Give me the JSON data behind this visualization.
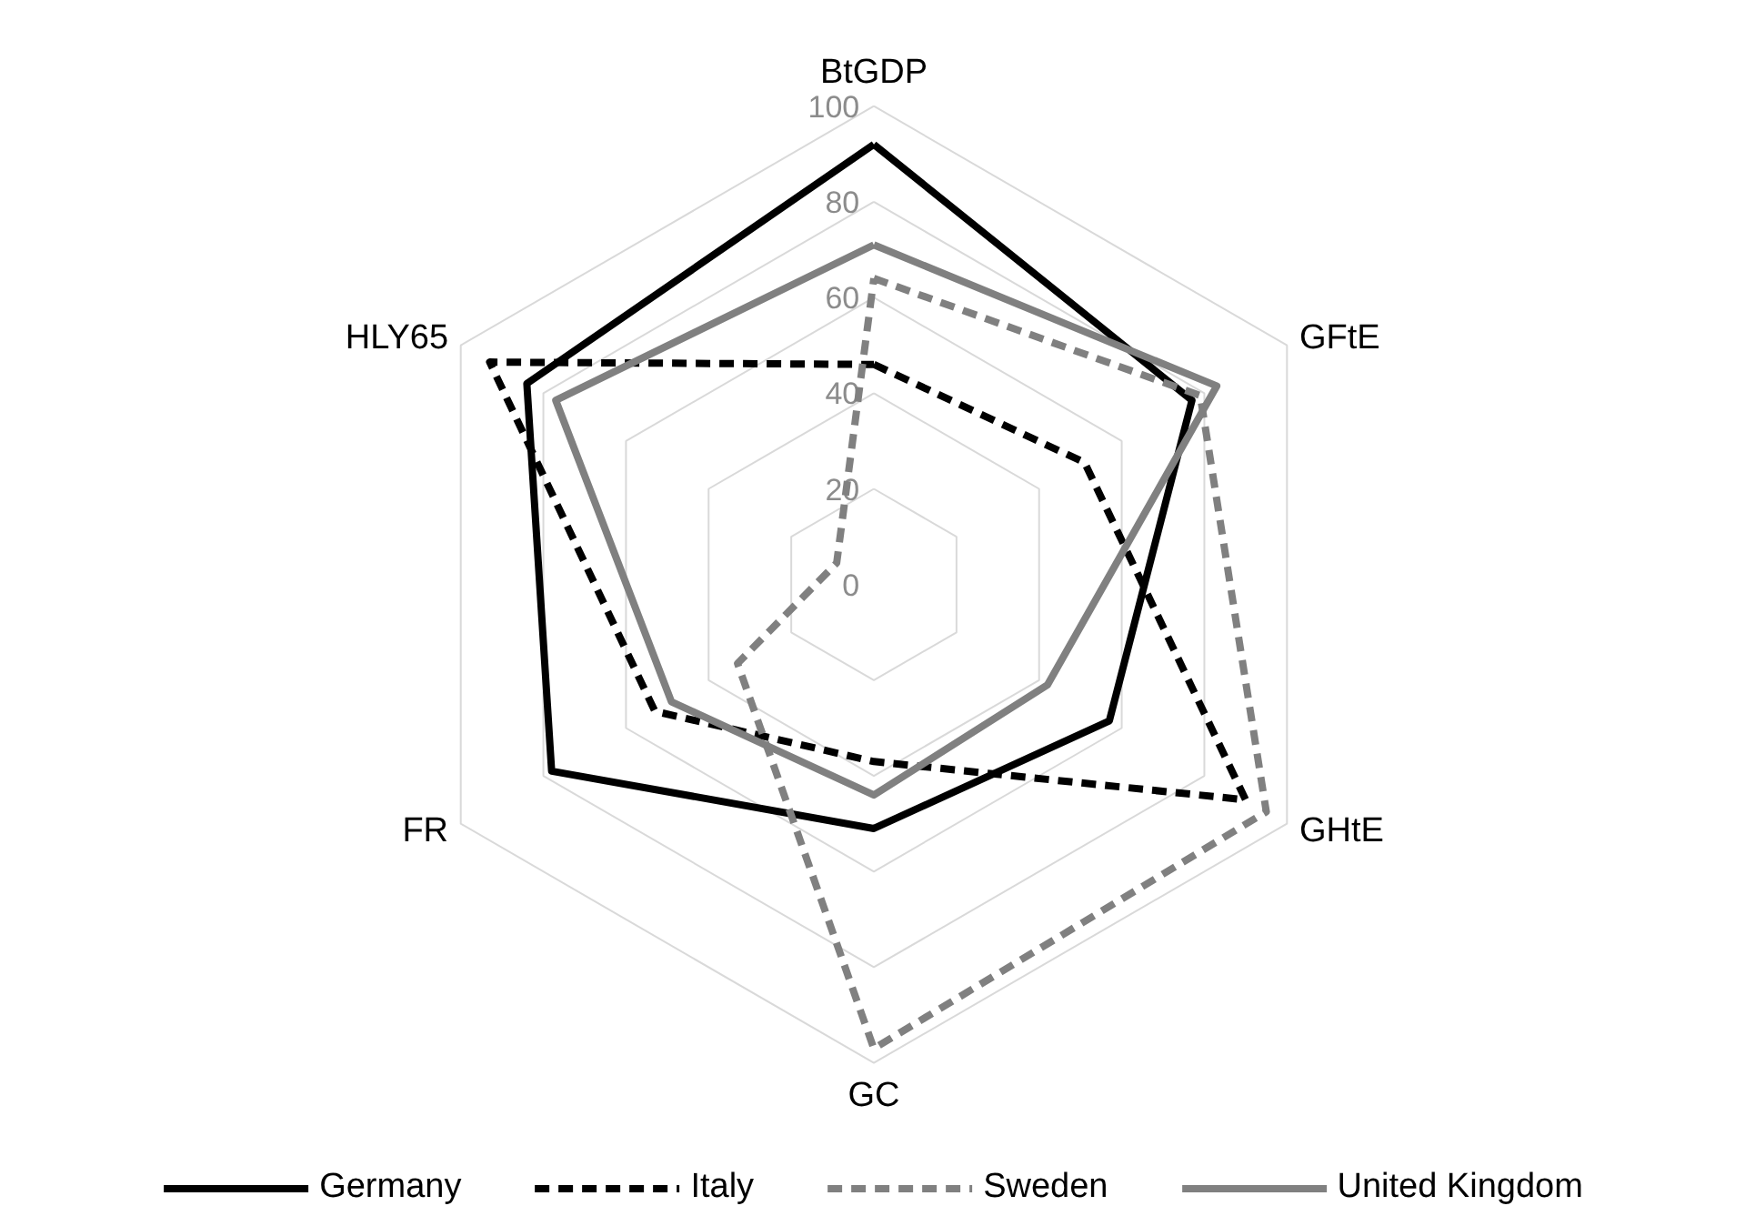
{
  "chart_data": {
    "type": "radar",
    "categories": [
      "BtGDP",
      "GFtE",
      "GHtE",
      "GC",
      "FR",
      "HLY65"
    ],
    "ylim": [
      0,
      100
    ],
    "yticks": [
      0,
      20,
      40,
      60,
      80,
      100
    ],
    "grid": true,
    "legend": "bottom",
    "series": [
      {
        "name": "Germany",
        "color": "#000000",
        "line_style": "solid",
        "values": [
          92,
          77,
          57,
          51,
          78,
          84
        ]
      },
      {
        "name": "Italy",
        "color": "#000000",
        "line_style": "dashed",
        "values": [
          46,
          51,
          90,
          37,
          53,
          93
        ]
      },
      {
        "name": "Sweden",
        "color": "#808080",
        "line_style": "dashed",
        "values": [
          64,
          79,
          95,
          97,
          33,
          9
        ]
      },
      {
        "name": "United Kingdom",
        "color": "#808080",
        "line_style": "solid",
        "values": [
          71,
          83,
          42,
          44,
          49,
          77
        ]
      }
    ]
  }
}
